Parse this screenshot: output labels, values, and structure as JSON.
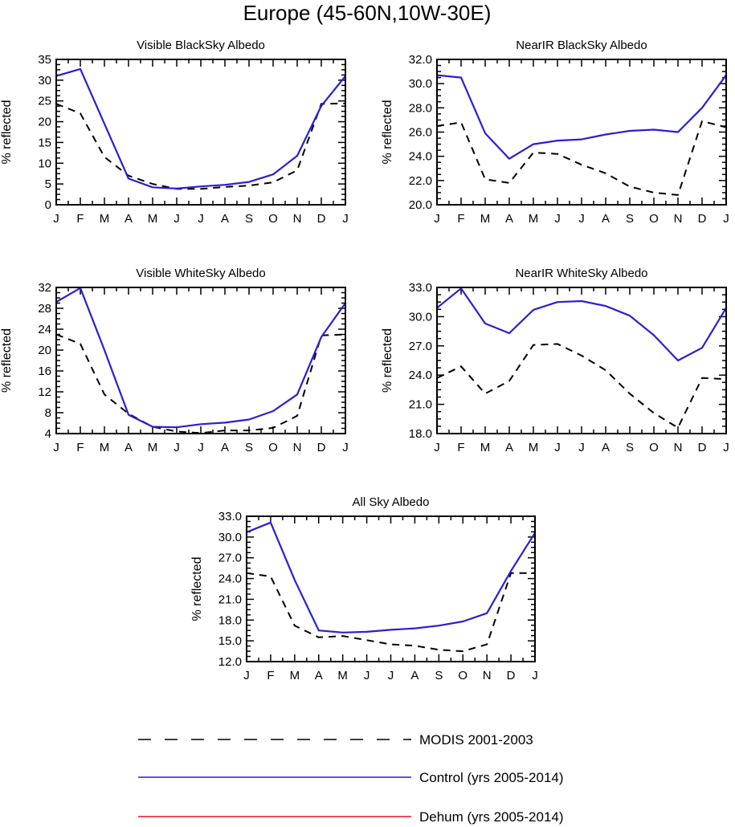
{
  "figure_title": "Europe (45-60N,10W-30E)",
  "chart_data": [
    {
      "type": "line",
      "title": "Visible BlackSky Albedo",
      "ylabel": "% reflected",
      "xlabel": "",
      "categories": [
        "J",
        "F",
        "M",
        "A",
        "M",
        "J",
        "J",
        "A",
        "S",
        "O",
        "N",
        "D",
        "J"
      ],
      "ylim": [
        0,
        35
      ],
      "yticks": [
        0,
        5,
        10,
        15,
        20,
        25,
        30,
        35
      ],
      "ytick_labels": [
        "0",
        "5",
        "10",
        "15",
        "20",
        "25",
        "30",
        "35"
      ],
      "series": [
        {
          "name": "MODIS 2001-2003",
          "values": [
            24.3,
            22.0,
            11.5,
            7.0,
            5.0,
            3.8,
            3.8,
            4.3,
            4.6,
            5.4,
            8.3,
            24.3,
            24.4
          ]
        },
        {
          "name": "Control (yrs 2005-2014)",
          "values": [
            31.0,
            32.7,
            19.5,
            6.3,
            4.2,
            3.9,
            4.4,
            4.8,
            5.5,
            7.3,
            11.8,
            23.8,
            31.0
          ]
        }
      ]
    },
    {
      "type": "line",
      "title": "NearIR BlackSky Albedo",
      "ylabel": "% reflected",
      "xlabel": "",
      "categories": [
        "J",
        "F",
        "M",
        "A",
        "M",
        "J",
        "J",
        "A",
        "S",
        "O",
        "N",
        "D",
        "J"
      ],
      "ylim": [
        20,
        32
      ],
      "yticks": [
        20,
        22,
        24,
        26,
        28,
        30,
        32
      ],
      "ytick_labels": [
        "20.0",
        "22.0",
        "24.0",
        "26.0",
        "28.0",
        "30.0",
        "32.0"
      ],
      "series": [
        {
          "name": "MODIS 2001-2003",
          "values": [
            26.5,
            26.8,
            22.1,
            21.8,
            24.3,
            24.2,
            23.3,
            22.6,
            21.5,
            21.0,
            20.8,
            26.9,
            26.4
          ]
        },
        {
          "name": "Control (yrs 2005-2014)",
          "values": [
            30.7,
            30.5,
            25.9,
            23.8,
            25.0,
            25.3,
            25.4,
            25.8,
            26.1,
            26.2,
            26.0,
            28.0,
            30.7
          ]
        }
      ]
    },
    {
      "type": "line",
      "title": "Visible WhiteSky Albedo",
      "ylabel": "% reflected",
      "xlabel": "",
      "categories": [
        "J",
        "F",
        "M",
        "A",
        "M",
        "J",
        "J",
        "A",
        "S",
        "O",
        "N",
        "D",
        "J"
      ],
      "ylim": [
        4,
        32
      ],
      "yticks": [
        4,
        8,
        12,
        16,
        20,
        24,
        28,
        32
      ],
      "ytick_labels": [
        "4",
        "8",
        "12",
        "16",
        "20",
        "24",
        "28",
        "32"
      ],
      "series": [
        {
          "name": "MODIS 2001-2003",
          "values": [
            23.0,
            21.2,
            11.5,
            7.8,
            5.3,
            4.4,
            4.1,
            4.6,
            4.6,
            5.1,
            7.4,
            22.8,
            23.0
          ]
        },
        {
          "name": "Control (yrs 2005-2014)",
          "values": [
            29.2,
            31.9,
            20.0,
            7.6,
            5.3,
            5.2,
            5.8,
            6.1,
            6.7,
            8.3,
            11.5,
            22.5,
            29.0
          ]
        }
      ]
    },
    {
      "type": "line",
      "title": "NearIR WhiteSky Albedo",
      "ylabel": "% reflected",
      "xlabel": "",
      "categories": [
        "J",
        "F",
        "M",
        "A",
        "M",
        "J",
        "J",
        "A",
        "S",
        "O",
        "N",
        "D",
        "J"
      ],
      "ylim": [
        18,
        33
      ],
      "yticks": [
        18,
        21,
        24,
        27,
        30,
        33
      ],
      "ytick_labels": [
        "18.0",
        "21.0",
        "24.0",
        "27.0",
        "30.0",
        "33.0"
      ],
      "series": [
        {
          "name": "MODIS 2001-2003",
          "values": [
            23.7,
            24.9,
            22.1,
            23.4,
            27.1,
            27.2,
            26.0,
            24.5,
            22.1,
            20.1,
            18.6,
            23.7,
            23.6
          ]
        },
        {
          "name": "Control (yrs 2005-2014)",
          "values": [
            30.9,
            32.9,
            29.3,
            28.3,
            30.7,
            31.5,
            31.6,
            31.1,
            30.1,
            28.1,
            25.5,
            26.8,
            30.9
          ]
        }
      ]
    },
    {
      "type": "line",
      "title": "All Sky Albedo",
      "ylabel": "% reflected",
      "xlabel": "",
      "categories": [
        "J",
        "F",
        "M",
        "A",
        "M",
        "J",
        "J",
        "A",
        "S",
        "O",
        "N",
        "D",
        "J"
      ],
      "ylim": [
        12,
        33
      ],
      "yticks": [
        12,
        15,
        18,
        21,
        24,
        27,
        30,
        33
      ],
      "ytick_labels": [
        "12.0",
        "15.0",
        "18.0",
        "21.0",
        "24.0",
        "27.0",
        "30.0",
        "33.0"
      ],
      "series": [
        {
          "name": "MODIS 2001-2003",
          "values": [
            24.8,
            24.3,
            17.2,
            15.5,
            15.7,
            15.1,
            14.5,
            14.3,
            13.7,
            13.5,
            14.5,
            24.8,
            24.8
          ]
        },
        {
          "name": "Control (yrs 2005-2014)",
          "values": [
            30.7,
            32.1,
            23.8,
            16.5,
            16.2,
            16.3,
            16.6,
            16.8,
            17.2,
            17.8,
            19.0,
            25.1,
            30.6
          ]
        }
      ]
    }
  ],
  "legend": {
    "items": [
      {
        "label": "MODIS 2001-2003",
        "color": "#000000",
        "style": "dashed"
      },
      {
        "label": "Control (yrs 2005-2014)",
        "color": "#0000ff",
        "style": "solid"
      },
      {
        "label": "Dehum (yrs 2005-2014)",
        "color": "#ff0000",
        "style": "solid"
      }
    ]
  },
  "colors": {
    "modis": "#000000",
    "control": "#2a1fd2",
    "dehum": "#e8141c"
  }
}
